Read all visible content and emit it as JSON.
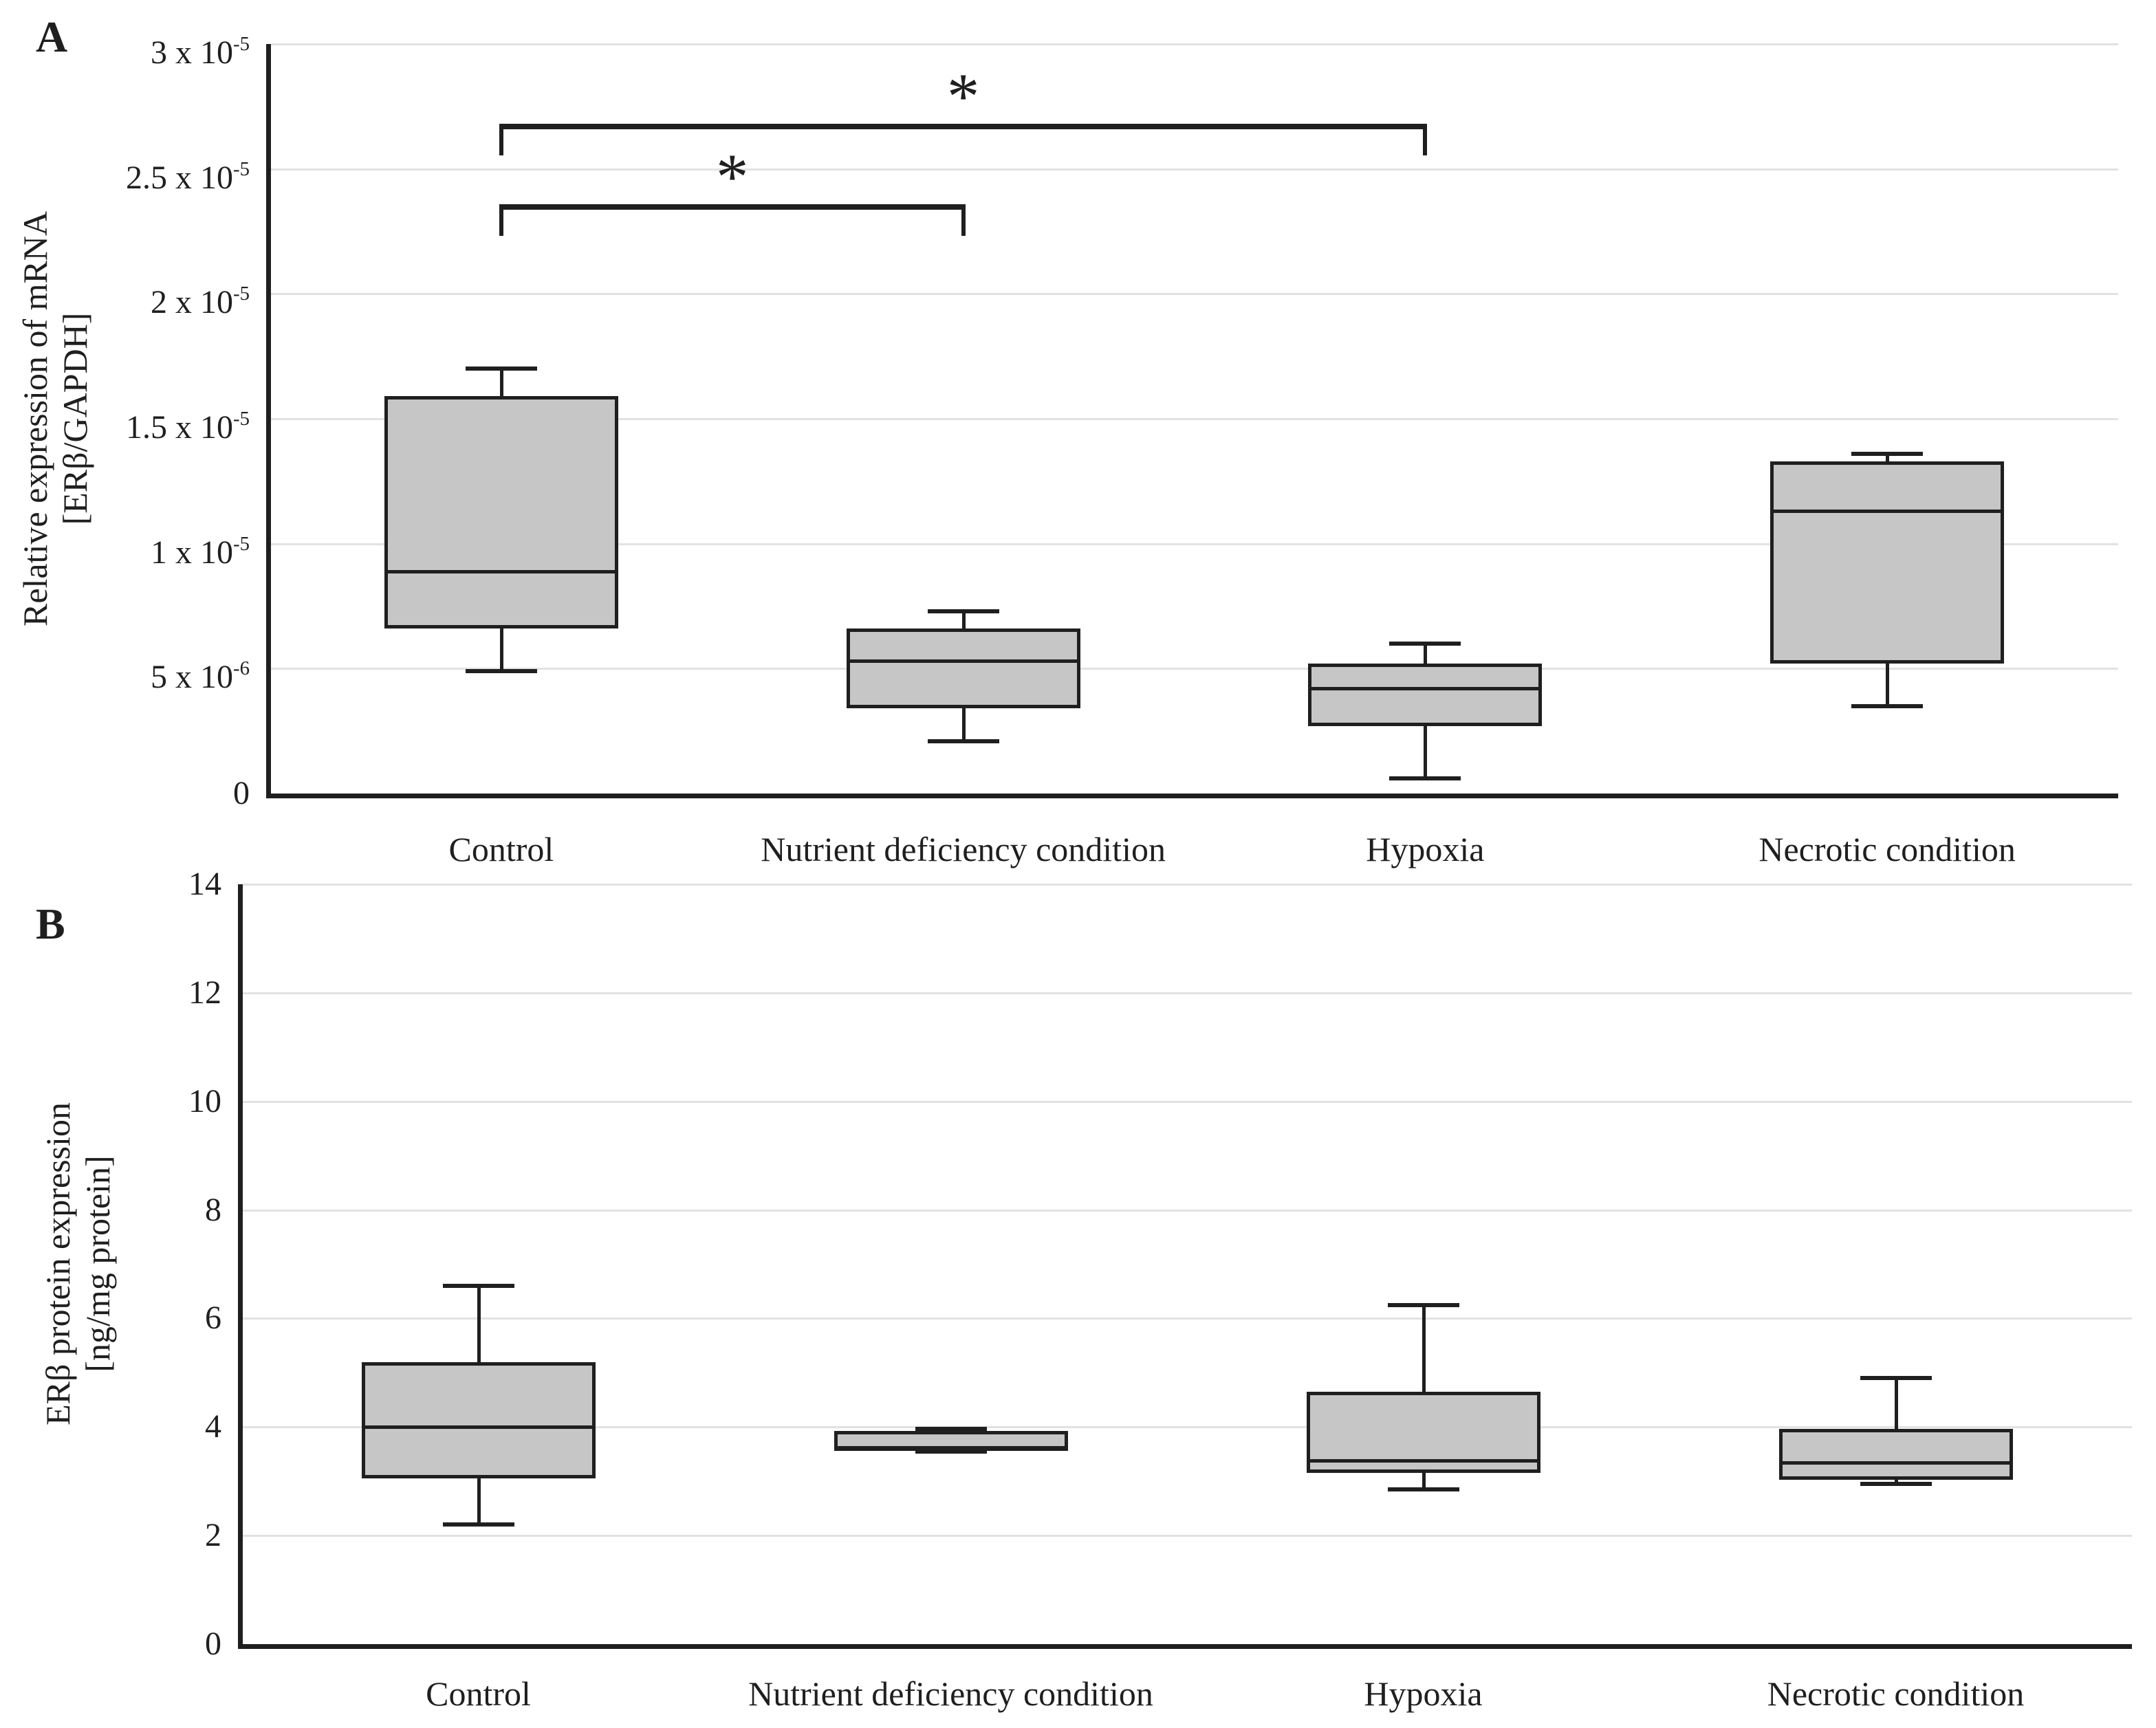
{
  "figure_type": "scientific-boxplot-figure",
  "background": "#ffffff",
  "styles": {
    "box_fill": "#c6c6c6",
    "line_color": "#1f1f1f",
    "grid_color": "#e2e2e2",
    "background": "#ffffff"
  },
  "chart_data": [
    {
      "type": "box",
      "panel_label": "A",
      "ylabel_lines": [
        "Relative expression of mRNA",
        "[ERβ/GAPDH]"
      ],
      "value_unit": "values in 10^-6 (axis shown as n x 10^-5)",
      "ylim": [
        0,
        30
      ],
      "grid": true,
      "yticks": [
        {
          "value": 30,
          "text": "3 x 10",
          "sup": "-5"
        },
        {
          "value": 25,
          "text": "2.5 x 10",
          "sup": "-5"
        },
        {
          "value": 20,
          "text": "2 x 10",
          "sup": "-5"
        },
        {
          "value": 15,
          "text": "1.5 x 10",
          "sup": "-5"
        },
        {
          "value": 10,
          "text": "1 x 10",
          "sup": "-5"
        },
        {
          "value": 5,
          "text": "5 x 10",
          "sup": "-6"
        },
        {
          "value": 0,
          "text": "0",
          "sup": ""
        }
      ],
      "categories": [
        "Control",
        "Nutrient deficiency condition",
        "Hypoxia",
        "Necrotic condition"
      ],
      "boxes": [
        {
          "category": "Control",
          "whisker_low": 4.9,
          "q1": 6.6,
          "median": 8.9,
          "q3": 15.9,
          "whisker_high": 17.0
        },
        {
          "category": "Nutrient deficiency condition",
          "whisker_low": 2.1,
          "q1": 3.4,
          "median": 5.3,
          "q3": 6.6,
          "whisker_high": 7.3
        },
        {
          "category": "Hypoxia",
          "whisker_low": 0.6,
          "q1": 2.7,
          "median": 4.2,
          "q3": 5.2,
          "whisker_high": 6.0
        },
        {
          "category": "Necrotic condition",
          "whisker_low": 3.5,
          "q1": 5.2,
          "median": 11.3,
          "q3": 13.3,
          "whisker_high": 13.6
        }
      ],
      "significance": [
        {
          "from": 0,
          "to": 1,
          "bar_value": 23.6,
          "label": "*"
        },
        {
          "from": 0,
          "to": 2,
          "bar_value": 26.8,
          "label": "*"
        }
      ]
    },
    {
      "type": "box",
      "panel_label": "B",
      "ylabel_lines": [
        "ERβ  protein expression",
        "[ng/mg protein]"
      ],
      "value_unit": "ng/mg protein",
      "ylim": [
        0,
        14
      ],
      "grid": true,
      "yticks": [
        {
          "value": 14,
          "text": "14",
          "sup": ""
        },
        {
          "value": 12,
          "text": "12",
          "sup": ""
        },
        {
          "value": 10,
          "text": "10",
          "sup": ""
        },
        {
          "value": 8,
          "text": "8",
          "sup": ""
        },
        {
          "value": 6,
          "text": "6",
          "sup": ""
        },
        {
          "value": 4,
          "text": "4",
          "sup": ""
        },
        {
          "value": 2,
          "text": "2",
          "sup": ""
        },
        {
          "value": 0,
          "text": "0",
          "sup": ""
        }
      ],
      "categories": [
        "Control",
        "Nutrient deficiency condition",
        "Hypoxia",
        "Necrotic condition"
      ],
      "boxes": [
        {
          "category": "Control",
          "whisker_low": 2.2,
          "q1": 3.05,
          "median": 4.0,
          "q3": 5.2,
          "whisker_high": 6.6
        },
        {
          "category": "Nutrient deficiency condition",
          "whisker_low": 3.55,
          "q1": 3.58,
          "median": 3.6,
          "q3": 3.93,
          "whisker_high": 3.97
        },
        {
          "category": "Hypoxia",
          "whisker_low": 2.85,
          "q1": 3.15,
          "median": 3.38,
          "q3": 4.65,
          "whisker_high": 6.25
        },
        {
          "category": "Necrotic condition",
          "whisker_low": 2.95,
          "q1": 3.03,
          "median": 3.35,
          "q3": 3.97,
          "whisker_high": 4.9
        }
      ],
      "significance": []
    }
  ]
}
